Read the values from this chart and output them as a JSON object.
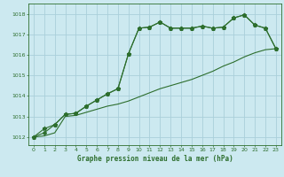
{
  "title": "Graphe pression niveau de la mer (hPa)",
  "bg_color": "#cce9f0",
  "grid_color": "#aacfda",
  "line_color": "#2d6e2d",
  "xlim": [
    -0.5,
    23.5
  ],
  "ylim": [
    1011.6,
    1018.5
  ],
  "yticks": [
    1012,
    1013,
    1014,
    1015,
    1016,
    1017,
    1018
  ],
  "xticks": [
    0,
    1,
    2,
    3,
    4,
    5,
    6,
    7,
    8,
    9,
    10,
    11,
    12,
    13,
    14,
    15,
    16,
    17,
    18,
    19,
    20,
    21,
    22,
    23
  ],
  "s1_x": [
    0,
    1,
    2,
    3,
    4,
    5,
    6,
    7,
    8,
    9,
    10,
    11,
    12,
    13,
    14,
    15,
    16,
    17,
    18,
    19,
    20,
    21,
    22,
    23
  ],
  "s1_y": [
    1012.0,
    1012.4,
    1012.6,
    1013.1,
    1013.15,
    1013.5,
    1013.8,
    1014.1,
    1014.35,
    1016.05,
    1017.3,
    1017.35,
    1017.6,
    1017.3,
    1017.3,
    1017.3,
    1017.4,
    1017.3,
    1017.35,
    1017.8,
    1017.95,
    1017.45,
    1017.3,
    1016.3
  ],
  "s2_x": [
    0,
    1,
    2,
    3,
    4,
    5,
    6,
    7,
    8,
    9,
    10,
    11,
    12,
    13,
    14,
    15,
    16,
    17,
    18,
    19,
    20,
    21,
    22,
    23
  ],
  "s2_y": [
    1012.0,
    1012.05,
    1012.2,
    1013.0,
    1013.05,
    1013.2,
    1013.35,
    1013.5,
    1013.6,
    1013.75,
    1013.95,
    1014.15,
    1014.35,
    1014.5,
    1014.65,
    1014.8,
    1015.0,
    1015.2,
    1015.45,
    1015.65,
    1015.9,
    1016.1,
    1016.25,
    1016.3
  ],
  "s3_x": [
    0,
    1,
    2,
    3,
    4,
    5,
    6,
    7,
    8,
    9,
    10,
    11,
    12,
    13,
    14,
    15,
    16,
    17,
    18,
    19,
    20,
    21,
    22,
    23
  ],
  "s3_y": [
    1012.0,
    1012.2,
    1012.6,
    1013.1,
    1013.15,
    1013.5,
    1013.8,
    1014.1,
    1014.35,
    1016.05,
    1017.3,
    1017.35,
    1017.6,
    1017.3,
    1017.3,
    1017.3,
    1017.4,
    1017.3,
    1017.35,
    1017.8,
    1017.95,
    1017.45,
    1017.3,
    1016.3
  ]
}
